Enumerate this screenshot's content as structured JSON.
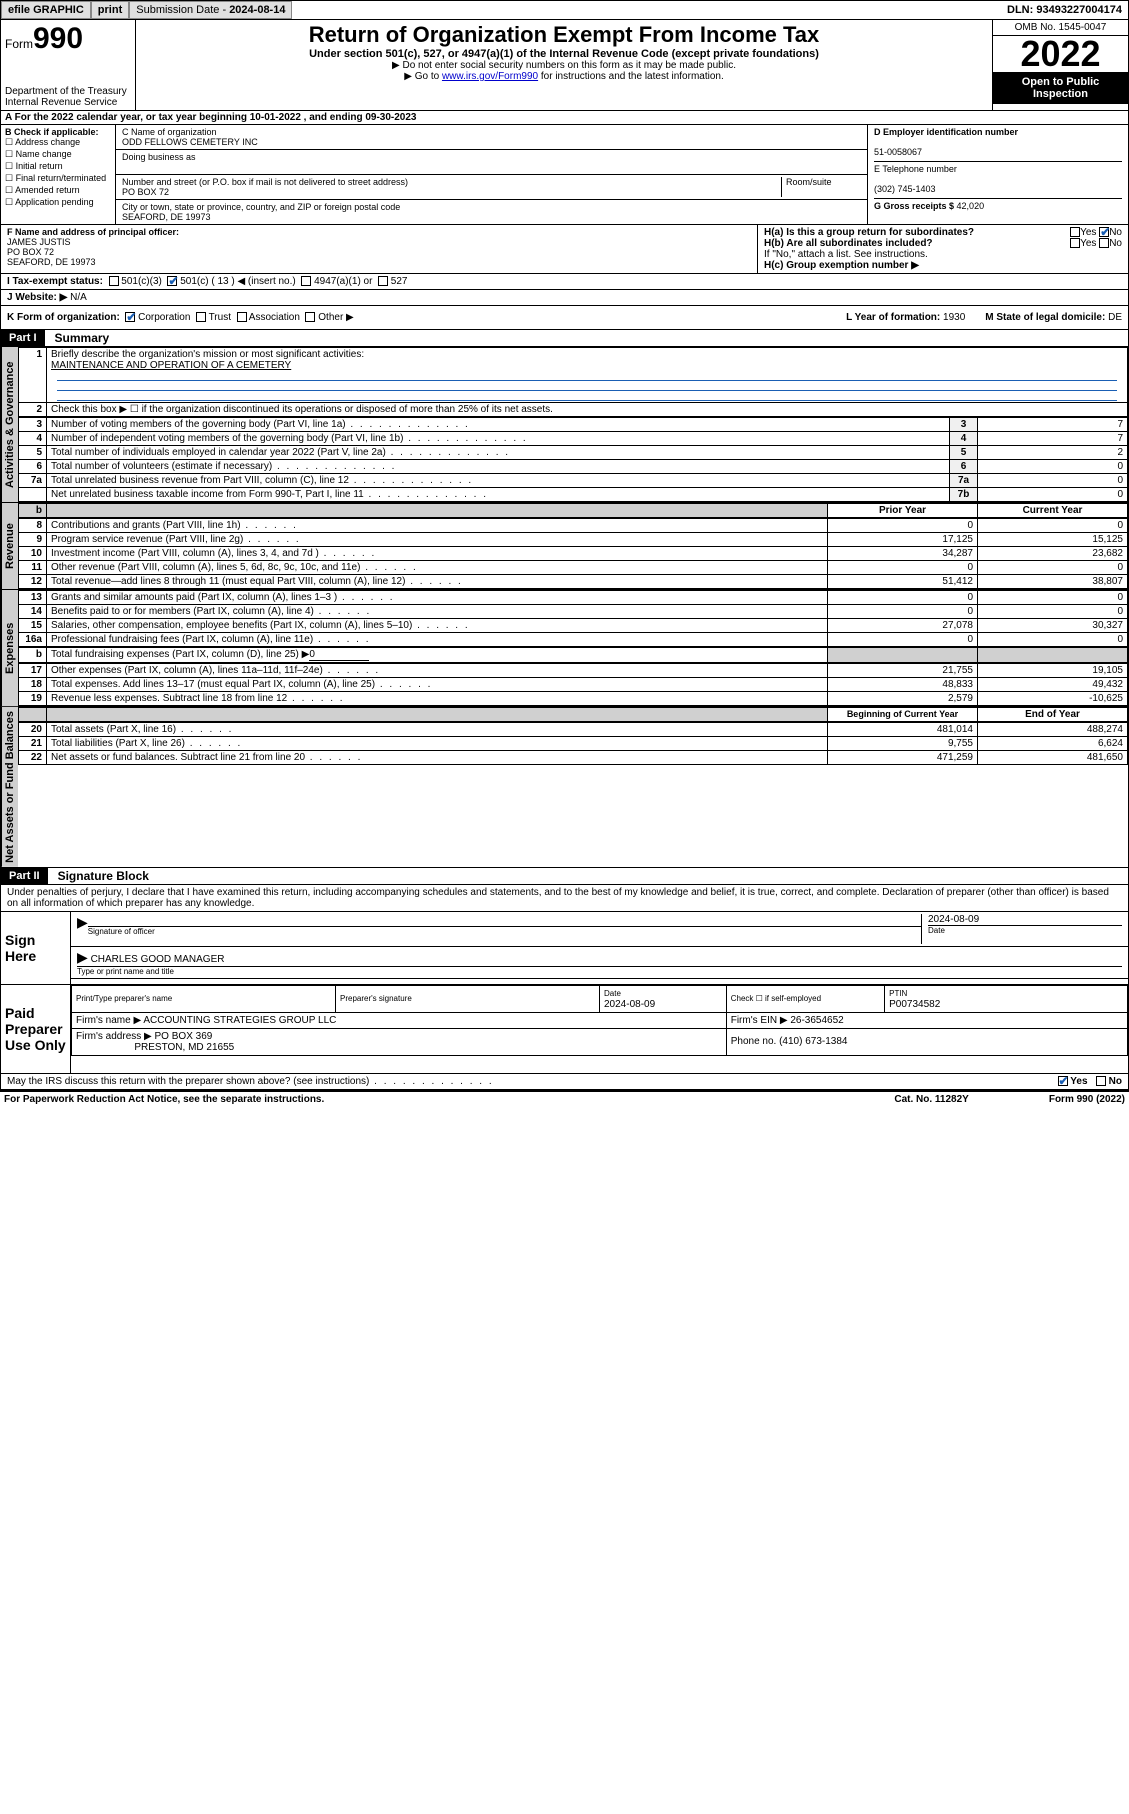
{
  "topbar": {
    "efile": "efile GRAPHIC",
    "print": "print",
    "subdate_label": "Submission Date - ",
    "subdate": "2024-08-14",
    "dln_label": "DLN: ",
    "dln": "93493227004174"
  },
  "header": {
    "form_prefix": "Form",
    "form_num": "990",
    "dept": "Department of the Treasury",
    "irs": "Internal Revenue Service",
    "title": "Return of Organization Exempt From Income Tax",
    "sub": "Under section 501(c), 527, or 4947(a)(1) of the Internal Revenue Code (except private foundations)",
    "note1": "▶ Do not enter social security numbers on this form as it may be made public.",
    "note2_pre": "▶ Go to ",
    "note2_link": "www.irs.gov/Form990",
    "note2_post": " for instructions and the latest information.",
    "omb": "OMB No. 1545-0047",
    "year": "2022",
    "open": "Open to Public Inspection"
  },
  "periodA": {
    "text_pre": "A For the 2022 calendar year, or tax year beginning ",
    "begin": "10-01-2022",
    "mid": " , and ending ",
    "end": "09-30-2023"
  },
  "blockB": {
    "label": "B Check if applicable:",
    "opts": [
      "Address change",
      "Name change",
      "Initial return",
      "Final return/terminated",
      "Amended return",
      "Application pending"
    ]
  },
  "blockC": {
    "name_label": "C Name of organization",
    "name": "ODD FELLOWS CEMETERY INC",
    "dba_label": "Doing business as",
    "addr_label": "Number and street (or P.O. box if mail is not delivered to street address)",
    "room_label": "Room/suite",
    "addr": "PO BOX 72",
    "city_label": "City or town, state or province, country, and ZIP or foreign postal code",
    "city": "SEAFORD, DE  19973"
  },
  "blockD": {
    "ein_label": "D Employer identification number",
    "ein": "51-0058067",
    "phone_label": "E Telephone number",
    "phone": "(302) 745-1403",
    "gross_label": "G Gross receipts $ ",
    "gross": "42,020"
  },
  "blockF": {
    "label": "F  Name and address of principal officer:",
    "name": "JAMES JUSTIS",
    "addr1": "PO BOX 72",
    "addr2": "SEAFORD, DE  19973"
  },
  "blockH": {
    "ha": "H(a)  Is this a group return for subordinates?",
    "ha_yes": "Yes",
    "ha_no": "No",
    "hb": "H(b)  Are all subordinates included?",
    "hb_yes": "Yes",
    "hb_no": "No",
    "hb_note": "If \"No,\" attach a list. See instructions.",
    "hc": "H(c)  Group exemption number ▶"
  },
  "statusI": {
    "label": "I  Tax-exempt status:",
    "o1": "501(c)(3)",
    "o2_pre": "501(c) ( ",
    "o2_num": "13",
    "o2_post": " ) ◀ (insert no.)",
    "o3": "4947(a)(1) or",
    "o4": "527"
  },
  "websiteJ": {
    "label": "J  Website: ▶ ",
    "val": "N/A"
  },
  "korg": {
    "label": "K Form of organization:",
    "opts": [
      "Corporation",
      "Trust",
      "Association",
      "Other ▶"
    ],
    "yof_label": "L Year of formation: ",
    "yof": "1930",
    "dom_label": "M State of legal domicile: ",
    "dom": "DE"
  },
  "part1": {
    "hdr": "Part I",
    "title": "Summary",
    "q1_label": "Briefly describe the organization's mission or most significant activities:",
    "q1_val": "MAINTENANCE AND OPERATION OF A CEMETERY",
    "q2": "Check this box ▶ ☐  if the organization discontinued its operations or disposed of more than 25% of its net assets.",
    "lines_gov": [
      {
        "n": "3",
        "t": "Number of voting members of the governing body (Part VI, line 1a)",
        "b": "3",
        "v": "7"
      },
      {
        "n": "4",
        "t": "Number of independent voting members of the governing body (Part VI, line 1b)",
        "b": "4",
        "v": "7"
      },
      {
        "n": "5",
        "t": "Total number of individuals employed in calendar year 2022 (Part V, line 2a)",
        "b": "5",
        "v": "2"
      },
      {
        "n": "6",
        "t": "Total number of volunteers (estimate if necessary)",
        "b": "6",
        "v": "0"
      },
      {
        "n": "7a",
        "t": "Total unrelated business revenue from Part VIII, column (C), line 12",
        "b": "7a",
        "v": "0"
      },
      {
        "n": "",
        "t": "Net unrelated business taxable income from Form 990-T, Part I, line 11",
        "b": "7b",
        "v": "0"
      }
    ],
    "col_prior": "Prior Year",
    "col_curr": "Current Year",
    "revenue": [
      {
        "n": "8",
        "t": "Contributions and grants (Part VIII, line 1h)",
        "p": "0",
        "c": "0"
      },
      {
        "n": "9",
        "t": "Program service revenue (Part VIII, line 2g)",
        "p": "17,125",
        "c": "15,125"
      },
      {
        "n": "10",
        "t": "Investment income (Part VIII, column (A), lines 3, 4, and 7d )",
        "p": "34,287",
        "c": "23,682"
      },
      {
        "n": "11",
        "t": "Other revenue (Part VIII, column (A), lines 5, 6d, 8c, 9c, 10c, and 11e)",
        "p": "0",
        "c": "0"
      },
      {
        "n": "12",
        "t": "Total revenue—add lines 8 through 11 (must equal Part VIII, column (A), line 12)",
        "p": "51,412",
        "c": "38,807"
      }
    ],
    "expenses": [
      {
        "n": "13",
        "t": "Grants and similar amounts paid (Part IX, column (A), lines 1–3 )",
        "p": "0",
        "c": "0"
      },
      {
        "n": "14",
        "t": "Benefits paid to or for members (Part IX, column (A), line 4)",
        "p": "0",
        "c": "0"
      },
      {
        "n": "15",
        "t": "Salaries, other compensation, employee benefits (Part IX, column (A), lines 5–10)",
        "p": "27,078",
        "c": "30,327"
      },
      {
        "n": "16a",
        "t": "Professional fundraising fees (Part IX, column (A), line 11e)",
        "p": "0",
        "c": "0"
      }
    ],
    "exp_b": {
      "n": "b",
      "t": "Total fundraising expenses (Part IX, column (D), line 25) ▶",
      "v": "0"
    },
    "expenses2": [
      {
        "n": "17",
        "t": "Other expenses (Part IX, column (A), lines 11a–11d, 11f–24e)",
        "p": "21,755",
        "c": "19,105"
      },
      {
        "n": "18",
        "t": "Total expenses. Add lines 13–17 (must equal Part IX, column (A), line 25)",
        "p": "48,833",
        "c": "49,432"
      },
      {
        "n": "19",
        "t": "Revenue less expenses. Subtract line 18 from line 12",
        "p": "2,579",
        "c": "-10,625"
      }
    ],
    "col_begin": "Beginning of Current Year",
    "col_end": "End of Year",
    "netassets": [
      {
        "n": "20",
        "t": "Total assets (Part X, line 16)",
        "p": "481,014",
        "c": "488,274"
      },
      {
        "n": "21",
        "t": "Total liabilities (Part X, line 26)",
        "p": "9,755",
        "c": "6,624"
      },
      {
        "n": "22",
        "t": "Net assets or fund balances. Subtract line 21 from line 20",
        "p": "471,259",
        "c": "481,650"
      }
    ],
    "tab_gov": "Activities & Governance",
    "tab_rev": "Revenue",
    "tab_exp": "Expenses",
    "tab_net": "Net Assets or Fund Balances"
  },
  "part2": {
    "hdr": "Part II",
    "title": "Signature Block",
    "decl": "Under penalties of perjury, I declare that I have examined this return, including accompanying schedules and statements, and to the best of my knowledge and belief, it is true, correct, and complete. Declaration of preparer (other than officer) is based on all information of which preparer has any knowledge.",
    "sign_here": "Sign Here",
    "sig_officer": "Signature of officer",
    "sig_date": "2024-08-09",
    "date_lbl": "Date",
    "officer_name": "CHARLES GOOD MANAGER",
    "officer_type": "Type or print name and title",
    "paid": "Paid Preparer Use Only",
    "prep_name_lbl": "Print/Type preparer's name",
    "prep_sig_lbl": "Preparer's signature",
    "prep_date_lbl": "Date",
    "prep_date": "2024-08-09",
    "check_self": "Check ☐ if self-employed",
    "ptin_lbl": "PTIN",
    "ptin": "P00734582",
    "firm_name_lbl": "Firm's name    ▶ ",
    "firm_name": "ACCOUNTING STRATEGIES GROUP LLC",
    "firm_ein_lbl": "Firm's EIN ▶ ",
    "firm_ein": "26-3654652",
    "firm_addr_lbl": "Firm's address ▶ ",
    "firm_addr": "PO BOX 369",
    "firm_city": "PRESTON, MD  21655",
    "firm_phone_lbl": "Phone no. ",
    "firm_phone": "(410) 673-1384",
    "discuss": "May the IRS discuss this return with the preparer shown above? (see instructions)",
    "yes": "Yes",
    "no": "No"
  },
  "footer": {
    "pra": "For Paperwork Reduction Act Notice, see the separate instructions.",
    "cat": "Cat. No. 11282Y",
    "form": "Form 990 (2022)"
  }
}
